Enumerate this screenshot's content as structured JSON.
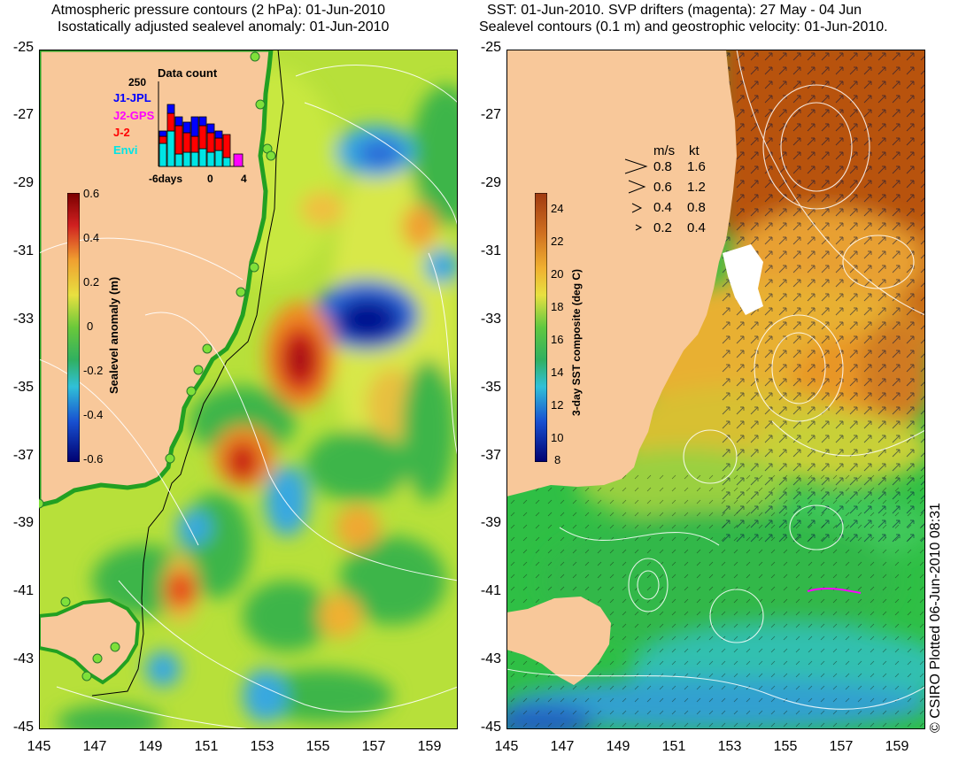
{
  "left_panel": {
    "title_line1": "Atmospheric pressure contours (2 hPa): 01-Jun-2010",
    "title_line2": "Isostatically adjusted sealevel anomaly: 01-Jun-2010",
    "colorbar": {
      "label": "Sealevel anomaly (m)",
      "ticks": [
        "0.6",
        "0.4",
        "0.2",
        "0",
        "-0.2",
        "-0.4",
        "-0.6"
      ]
    },
    "data_count": {
      "title": "Data count",
      "y_top": "250",
      "x_ticks": [
        "-6days",
        "0",
        "4"
      ],
      "legend": [
        {
          "label": "J1-JPL",
          "color": "#0000ff"
        },
        {
          "label": "J2-GPS",
          "color": "#ff00ff"
        },
        {
          "label": "J-2",
          "color": "#ff0000"
        },
        {
          "label": "Envi",
          "color": "#00e5e5"
        }
      ]
    }
  },
  "right_panel": {
    "title_line1": "SST: 01-Jun-2010. SVP drifters (magenta): 27 May - 04 Jun",
    "title_line2": "Sealevel contours (0.1 m) and geostrophic velocity: 01-Jun-2010.",
    "colorbar": {
      "label": "3-day SST composite (deg C)",
      "ticks": [
        "24",
        "22",
        "20",
        "18",
        "16",
        "14",
        "12",
        "10",
        "8"
      ]
    },
    "velocity_legend": {
      "header_ms": "m/s",
      "header_kt": "kt",
      "rows": [
        {
          "ms": "0.8",
          "kt": "1.6"
        },
        {
          "ms": "0.6",
          "kt": "1.2"
        },
        {
          "ms": "0.4",
          "kt": "0.8"
        },
        {
          "ms": "0.2",
          "kt": "0.4"
        }
      ]
    }
  },
  "axes": {
    "y_ticks": [
      "-25",
      "-27",
      "-29",
      "-31",
      "-33",
      "-35",
      "-37",
      "-39",
      "-41",
      "-43",
      "-45"
    ],
    "x_ticks": [
      "145",
      "147",
      "149",
      "151",
      "153",
      "155",
      "157",
      "159"
    ]
  },
  "credit": "© CSIRO Plotted 06-Jun-2010 08:31",
  "colors": {
    "land": "#f8c89a",
    "sea_anomaly_base": "#b7e03a",
    "sst_warm": "#b8520f",
    "sst_cool": "#2fbf45"
  }
}
